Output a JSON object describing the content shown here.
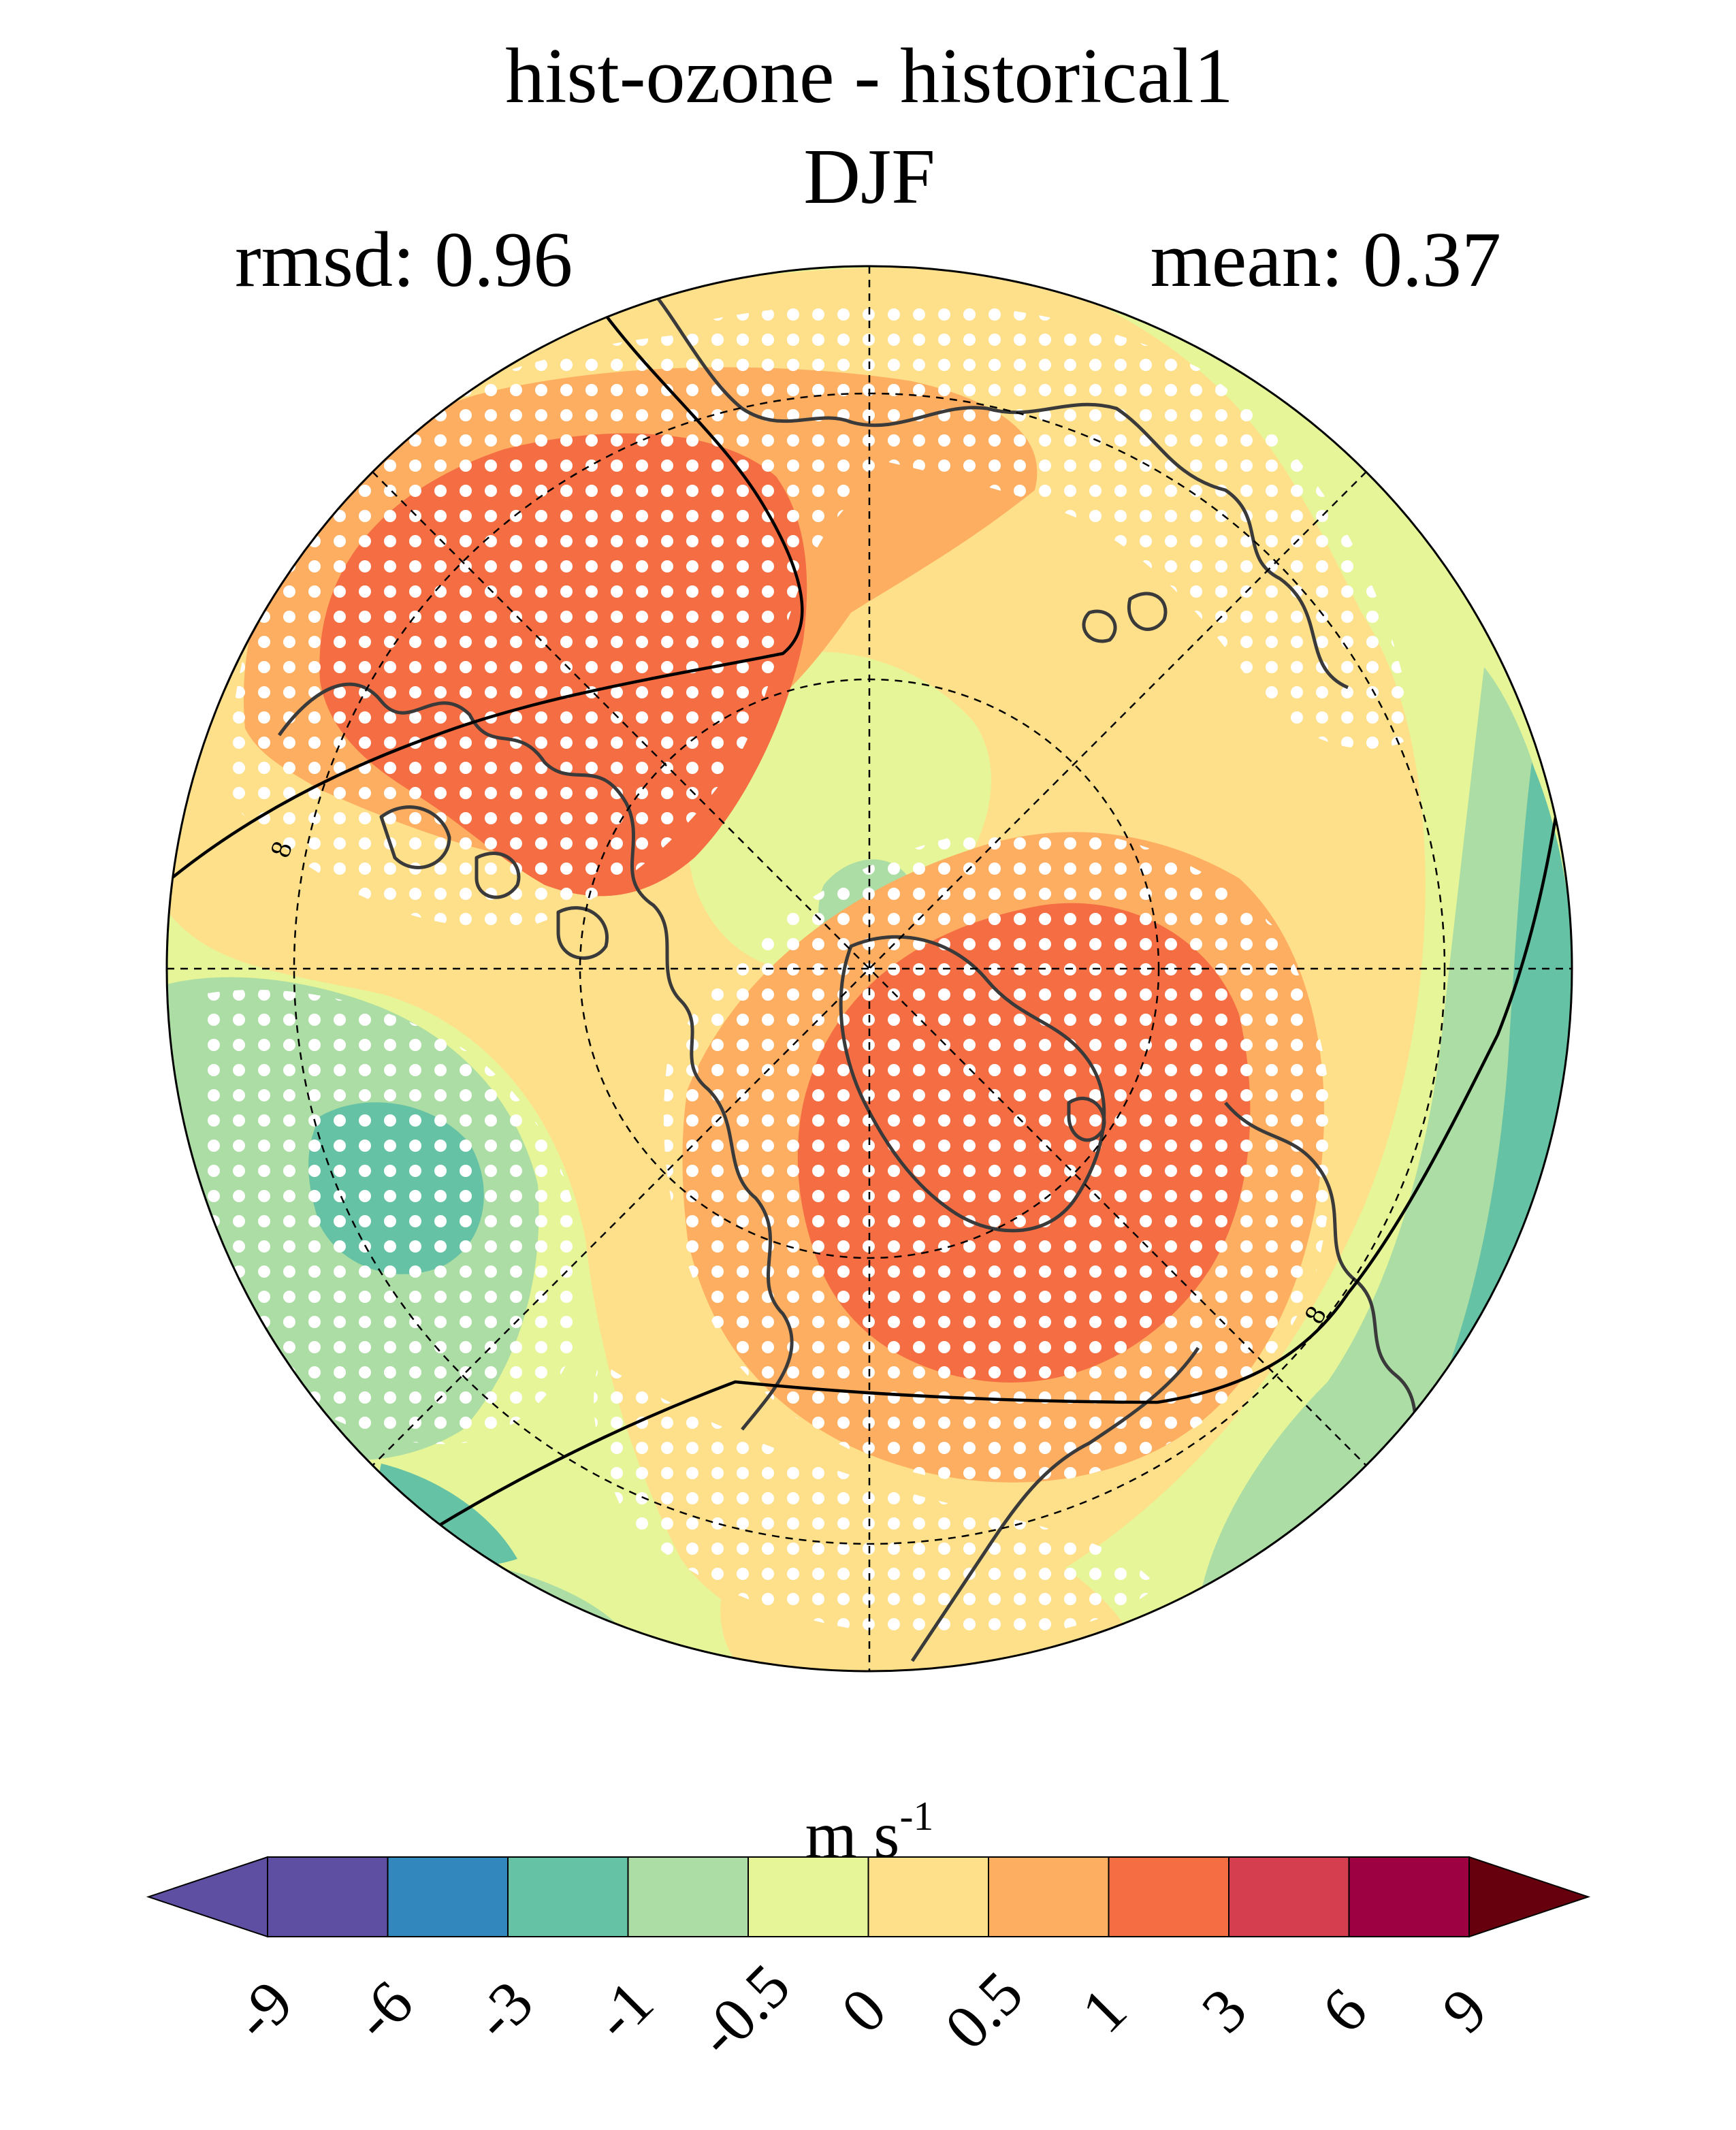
{
  "title": "hist-ozone - historical1",
  "season": "DJF",
  "stats": {
    "rmsd_label": "rmsd: 0.96",
    "mean_label": "mean: 0.37"
  },
  "colorbar": {
    "unit_base": "m s",
    "unit_exp": "-1",
    "ticks": [
      "-9",
      "-6",
      "-3",
      "-1",
      "-0.5",
      "0",
      "0.5",
      "1",
      "3",
      "6",
      "9"
    ],
    "colors": [
      "#5e4fa2",
      "#5e4fa2",
      "#3288bd",
      "#66c2a5",
      "#abdda4",
      "#e6f598",
      "#fee08b",
      "#fdae61",
      "#f46d43",
      "#d53e4f",
      "#9e0142",
      "#67000d"
    ],
    "extend": "both"
  },
  "map": {
    "projection": "north polar stereographic",
    "colors": {
      "background": "#e6f598",
      "pale_yellow": "#fee08b",
      "orange": "#fdae61",
      "red_orange": "#f46d43",
      "light_green": "#abdda4",
      "teal": "#66c2a5",
      "coast": "#3a3a3a",
      "stipple": "#ffffff"
    }
  }
}
